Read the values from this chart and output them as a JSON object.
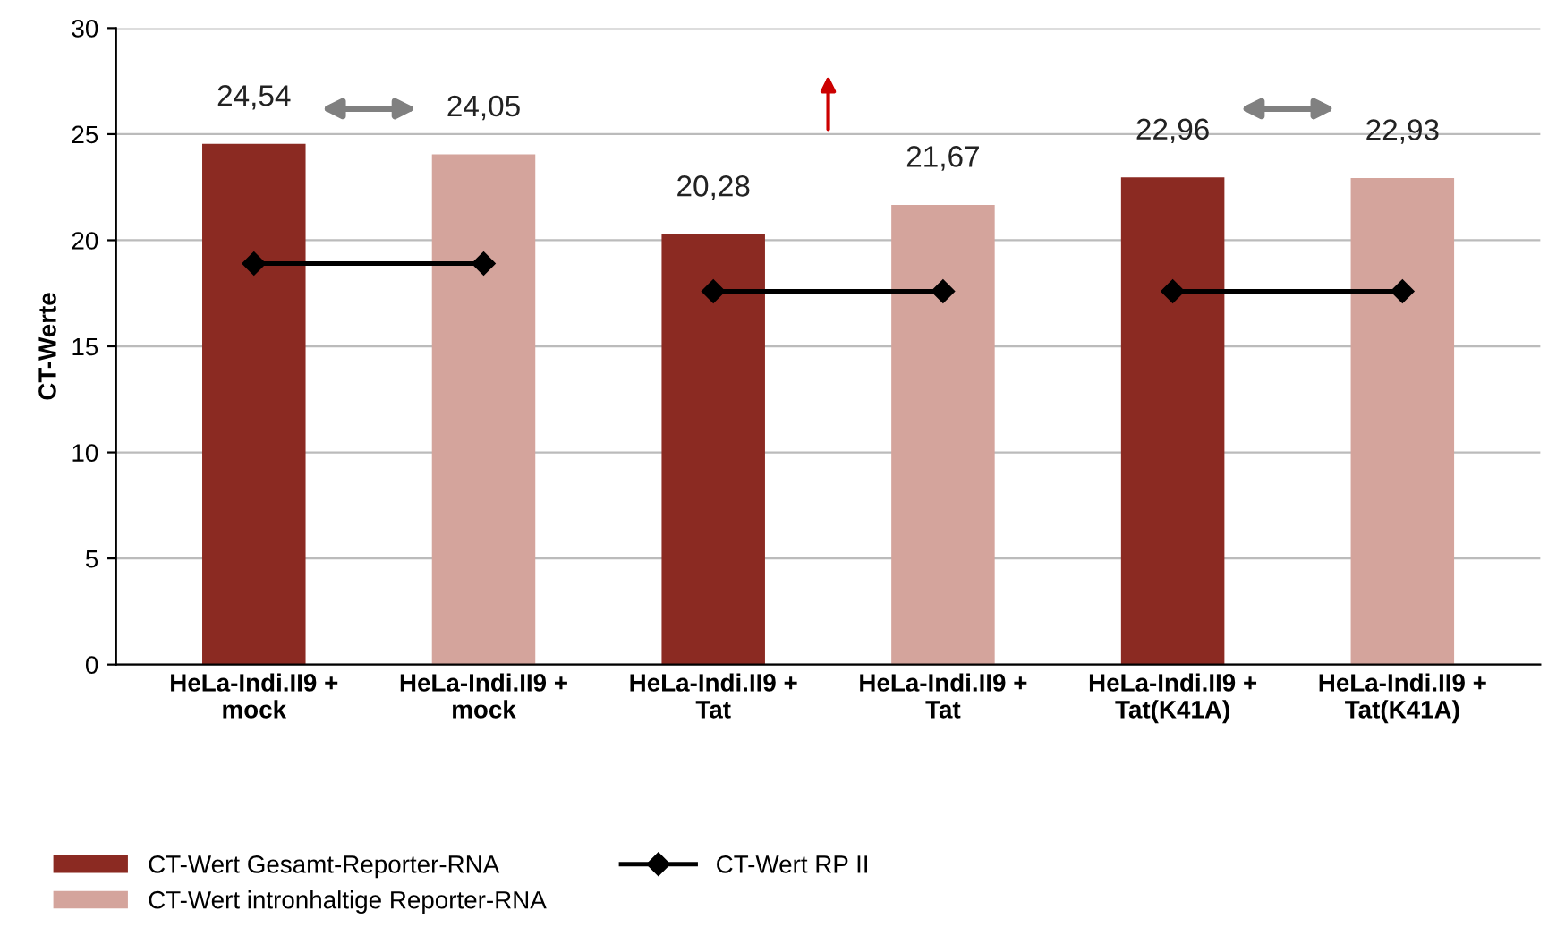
{
  "chart_data": {
    "type": "bar",
    "ylabel": "CT-Werte",
    "categories": [
      "HeLa-Indi.II9 +\nmock",
      "HeLa-Indi.II9 +\nmock",
      "HeLa-Indi.II9 +\nTat",
      "HeLa-Indi.II9 +\nTat",
      "HeLa-Indi.II9 +\nTat(K41A)",
      "HeLa-Indi.II9 +\nTat(K41A)"
    ],
    "series": [
      {
        "name": "CT-Wert Gesamt-Reporter-RNA",
        "color": "#8b2a22",
        "values": [
          24.54,
          null,
          20.28,
          null,
          22.96,
          null
        ],
        "value_labels": [
          "24,54",
          null,
          "20,28",
          null,
          "22,96",
          null
        ]
      },
      {
        "name": "CT-Wert intronhaltige Reporter-RNA",
        "color": "#d4a49c",
        "values": [
          null,
          24.05,
          null,
          21.67,
          null,
          22.93
        ],
        "value_labels": [
          null,
          "24,05",
          null,
          "21,67",
          null,
          "22,93"
        ]
      },
      {
        "name": "CT-Wert RP II",
        "type": "line",
        "color": "#000000",
        "marker": "diamond",
        "values": [
          18.9,
          18.9,
          null,
          null,
          null,
          null
        ]
      },
      {
        "type": "line",
        "color": "#000000",
        "marker": "diamond",
        "values": [
          null,
          null,
          17.6,
          17.6,
          null,
          null
        ]
      },
      {
        "type": "line",
        "color": "#000000",
        "marker": "diamond",
        "values": [
          null,
          null,
          null,
          null,
          17.6,
          17.6
        ]
      }
    ],
    "ylim": [
      0,
      30
    ],
    "yticks": [
      0,
      5,
      10,
      15,
      20,
      25,
      30
    ],
    "grid": "y",
    "legend": "bottom"
  }
}
